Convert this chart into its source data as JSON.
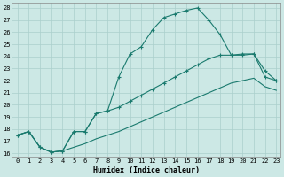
{
  "xlabel": "Humidex (Indice chaleur)",
  "background_color": "#cce8e5",
  "grid_color": "#aacfcc",
  "line_color": "#1a7a6e",
  "xlim": [
    -0.5,
    23.4
  ],
  "ylim": [
    15.7,
    28.4
  ],
  "xticks": [
    0,
    1,
    2,
    3,
    4,
    5,
    6,
    7,
    8,
    9,
    10,
    11,
    12,
    13,
    14,
    15,
    16,
    17,
    18,
    19,
    20,
    21,
    22,
    23
  ],
  "yticks": [
    16,
    17,
    18,
    19,
    20,
    21,
    22,
    23,
    24,
    25,
    26,
    27,
    28
  ],
  "line1_x": [
    0,
    1,
    2,
    3,
    4,
    5,
    6,
    7,
    8,
    9,
    10,
    11,
    12,
    13,
    14,
    15,
    16,
    17,
    18,
    19,
    20,
    21,
    22,
    23
  ],
  "line1_y": [
    17.5,
    17.8,
    16.5,
    16.1,
    16.2,
    17.8,
    17.8,
    19.3,
    19.5,
    22.3,
    24.2,
    24.8,
    26.2,
    27.2,
    27.5,
    27.8,
    28.0,
    27.0,
    25.8,
    24.1,
    24.1,
    24.2,
    22.8,
    22.0
  ],
  "line2_x": [
    0,
    1,
    2,
    3,
    4,
    5,
    6,
    7,
    8,
    9,
    10,
    11,
    12,
    13,
    14,
    15,
    16,
    17,
    18,
    19,
    20,
    21,
    22,
    23
  ],
  "line2_y": [
    17.5,
    17.8,
    16.5,
    16.1,
    16.2,
    17.8,
    17.8,
    19.3,
    19.5,
    19.8,
    20.3,
    20.8,
    21.3,
    21.8,
    22.3,
    22.8,
    23.3,
    23.8,
    24.1,
    24.1,
    24.2,
    24.2,
    22.3,
    22.0
  ],
  "line3_x": [
    0,
    1,
    2,
    3,
    4,
    5,
    6,
    7,
    8,
    9,
    10,
    11,
    12,
    13,
    14,
    15,
    16,
    17,
    18,
    19,
    20,
    21,
    22,
    23
  ],
  "line3_y": [
    17.5,
    17.8,
    16.5,
    16.1,
    16.2,
    16.5,
    16.8,
    17.2,
    17.5,
    17.8,
    18.2,
    18.6,
    19.0,
    19.4,
    19.8,
    20.2,
    20.6,
    21.0,
    21.4,
    21.8,
    22.0,
    22.2,
    21.5,
    21.2
  ]
}
